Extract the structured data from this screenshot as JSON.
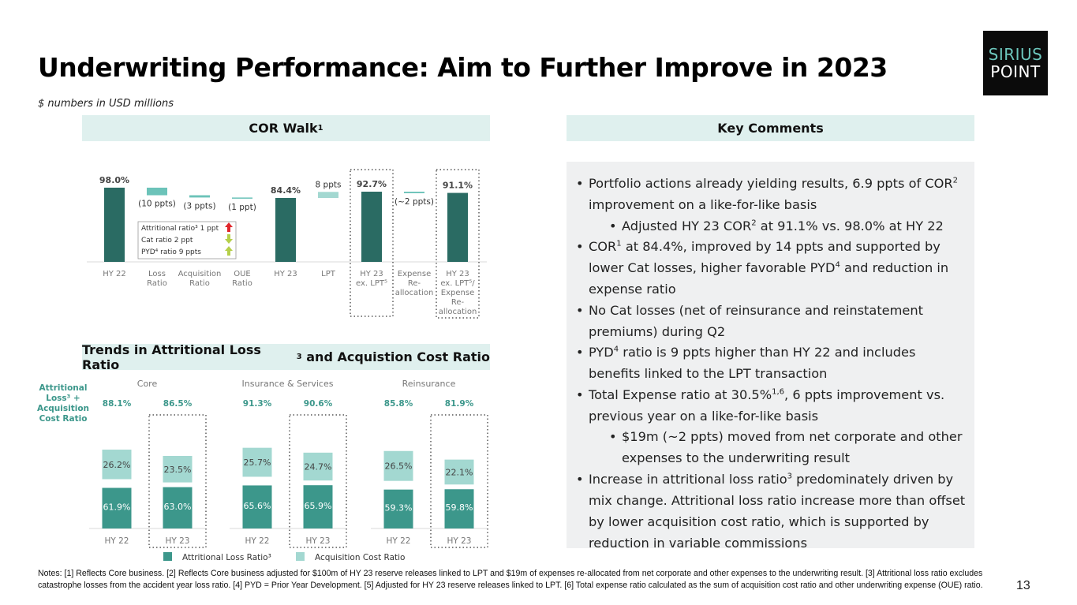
{
  "page": {
    "title": "Underwriting Performance: Aim to Further Improve in 2023",
    "subtitle": "$ numbers in USD millions",
    "page_number": "13",
    "logo": {
      "line1": "SIRIUS",
      "line2": "POINT"
    }
  },
  "sections": {
    "cor_walk": {
      "label": "COR Walk",
      "sup": "1"
    },
    "trends": {
      "label_pre": "Trends in Attritional Loss Ratio",
      "sup": "3",
      "label_post": " and Acquistion Cost Ratio"
    },
    "key_comments": {
      "label": "Key Comments"
    }
  },
  "comments": [
    {
      "level": 1,
      "parts": [
        [
          "Portfolio actions already yielding results, 6.9 ppts of COR",
          ""
        ],
        [
          "2",
          "sup"
        ],
        [
          " improvement on a like-for-like basis",
          ""
        ]
      ]
    },
    {
      "level": 2,
      "parts": [
        [
          "Adjusted HY 23 COR",
          ""
        ],
        [
          "2",
          "sup"
        ],
        [
          " at 91.1% vs. 98.0% at HY 22",
          ""
        ]
      ]
    },
    {
      "level": 1,
      "parts": [
        [
          "COR",
          ""
        ],
        [
          "1",
          "sup"
        ],
        [
          " at 84.4%, improved by 14 ppts and supported by lower Cat losses, higher favorable PYD",
          ""
        ],
        [
          "4",
          "sup"
        ],
        [
          " and reduction in expense ratio",
          ""
        ]
      ]
    },
    {
      "level": 1,
      "parts": [
        [
          "No Cat losses (net of reinsurance and reinstatement premiums) during Q2",
          ""
        ]
      ]
    },
    {
      "level": 1,
      "parts": [
        [
          "PYD",
          ""
        ],
        [
          "4",
          "sup"
        ],
        [
          " ratio is 9 ppts higher than HY 22 and includes benefits linked to the LPT transaction",
          ""
        ]
      ]
    },
    {
      "level": 1,
      "parts": [
        [
          "Total Expense ratio at 30.5%",
          ""
        ],
        [
          "1,6",
          "sup"
        ],
        [
          ", 6 ppts improvement vs. previous year on a like-for-like basis",
          ""
        ]
      ]
    },
    {
      "level": 2,
      "parts": [
        [
          "$19m (~2 ppts) moved from net corporate and other expenses to the underwriting result",
          ""
        ]
      ]
    },
    {
      "level": 1,
      "parts": [
        [
          "Increase in attritional loss ratio",
          ""
        ],
        [
          "3",
          "sup"
        ],
        [
          " predominately driven by mix change. Attritional loss ratio increase more than offset by lower acquisition cost ratio, which is supported by reduction in variable commissions",
          ""
        ]
      ]
    }
  ],
  "notes": "Notes: [1] Reflects Core business. [2] Reflects Core business adjusted for $100m of HY 23 reserve releases linked to LPT and $19m of expenses re-allocated from net corporate and other expenses to the underwriting result. [3] Attritional loss ratio excludes catastrophe losses from the accident year loss ratio. [4] PYD = Prior Year Development. [5] Adjusted for HY 23  reserve releases linked to LPT. [6] Total expense ratio calculated as the sum of acquisition cost ratio and other underwriting expense (OUE) ratio.",
  "colors": {
    "dark_teal": "#2a6b63",
    "light_teal": "#6cc3b9",
    "pale_teal": "#a3d8d1",
    "mid_teal": "#3c978b",
    "header_bg": "#dff0ee",
    "accent_text": "#3c978b"
  },
  "chart_data": [
    {
      "type": "bar",
      "subtype": "waterfall",
      "title": "COR Walk",
      "unit": "%",
      "ylim": [
        0,
        100
      ],
      "categories": [
        {
          "label": [
            "HY 22"
          ],
          "kind": "total",
          "value": 98.0,
          "data_label": "98.0%"
        },
        {
          "label": [
            "Loss",
            "Ratio"
          ],
          "kind": "delta",
          "value": -10,
          "data_label": "(10 ppts)"
        },
        {
          "label": [
            "Acquisition",
            "Ratio"
          ],
          "kind": "delta",
          "value": -3,
          "data_label": "(3 ppts)"
        },
        {
          "label": [
            "OUE",
            "Ratio"
          ],
          "kind": "delta",
          "value": -1,
          "data_label": "(1 ppt)"
        },
        {
          "label": [
            "HY 23"
          ],
          "kind": "total",
          "value": 84.4,
          "data_label": "84.4%"
        },
        {
          "label": [
            "LPT"
          ],
          "kind": "delta",
          "value": 8,
          "data_label": "8 ppts"
        },
        {
          "label": [
            "HY 23",
            "ex. LPT⁵"
          ],
          "kind": "total",
          "value": 92.7,
          "data_label": "92.7%",
          "highlight": true
        },
        {
          "label": [
            "Expense",
            "Re-",
            "allocation"
          ],
          "kind": "delta",
          "value": -2,
          "data_label": "(~2 ppts)"
        },
        {
          "label": [
            "HY 23",
            "ex. LPT⁵/",
            "Expense",
            "Re-",
            "allocation"
          ],
          "kind": "total",
          "value": 91.1,
          "data_label": "91.1%",
          "highlight": true
        }
      ],
      "loss_breakdown": [
        {
          "text": "Attritional ratio³ 1 ppt",
          "direction": "up",
          "color": "#e0262b"
        },
        {
          "text": "Cat ratio 2 ppt",
          "direction": "down",
          "color": "#b5cf4a"
        },
        {
          "text": "PYD⁴ ratio 9 ppts",
          "direction": "up",
          "color": "#b5cf4a"
        }
      ]
    },
    {
      "type": "bar",
      "subtype": "stacked",
      "title": "Trends in Attritional Loss Ratio and Acquistion Cost Ratio",
      "ylabel": [
        "Attritional",
        "Loss³ +",
        "Acquisition",
        "Cost Ratio"
      ],
      "unit": "%",
      "groups": [
        {
          "name": "Core",
          "bars": [
            {
              "x": "HY 22",
              "total": "88.1%",
              "attritional": 61.9,
              "acquisition": 26.2
            },
            {
              "x": "HY 23",
              "total": "86.5%",
              "attritional": 63.0,
              "acquisition": 23.5,
              "highlight": true
            }
          ]
        },
        {
          "name": "Insurance & Services",
          "bars": [
            {
              "x": "HY 22",
              "total": "91.3%",
              "attritional": 65.6,
              "acquisition": 25.7
            },
            {
              "x": "HY 23",
              "total": "90.6%",
              "attritional": 65.9,
              "acquisition": 24.7,
              "highlight": true
            }
          ]
        },
        {
          "name": "Reinsurance",
          "bars": [
            {
              "x": "HY 22",
              "total": "85.8%",
              "attritional": 59.3,
              "acquisition": 26.5
            },
            {
              "x": "HY 23",
              "total": "81.9%",
              "attritional": 59.8,
              "acquisition": 22.1,
              "highlight": true
            }
          ]
        }
      ],
      "legend": [
        {
          "name": "Attritional Loss Ratio³",
          "color": "#3c978b"
        },
        {
          "name": "Acquisition Cost Ratio",
          "color": "#a3d8d1"
        }
      ],
      "legend_position": "bottom"
    }
  ]
}
